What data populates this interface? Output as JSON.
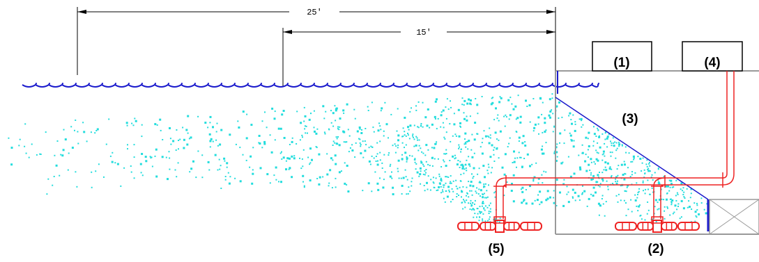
{
  "dimensions": {
    "long": "25′",
    "short": "15′"
  },
  "callouts": {
    "c1": "(1)",
    "c2": "(2)",
    "c3": "(3)",
    "c4": "(4)",
    "c5": "(5)"
  },
  "colors": {
    "water": "#1a1acc",
    "bubbles": "#22dddd",
    "pipe": "#ee2222",
    "structure": "#999999",
    "dimension": "#000000"
  }
}
